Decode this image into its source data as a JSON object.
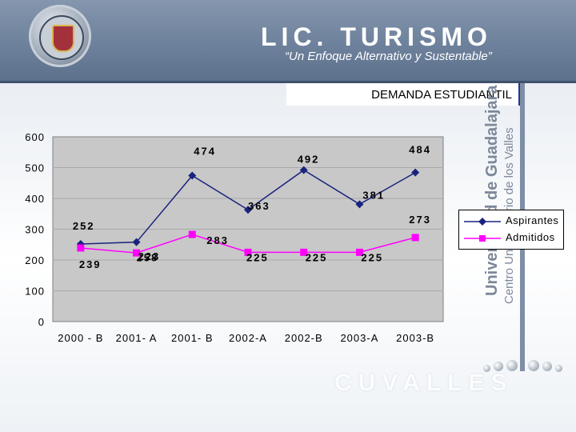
{
  "header": {
    "title": "LIC. TURISMO",
    "subtitle": "“Un Enfoque Alternativo y Sustentable”",
    "section_label": "DEMANDA ESTUDIANTIL"
  },
  "side": {
    "university": "Universidad de Guadalajara",
    "center": "Centro Universitario de los Valles"
  },
  "footer": {
    "brand": "CUVALLES"
  },
  "colors": {
    "aspirantes": "#1a237e",
    "admitidos": "#ff00ff",
    "plot_bg": "#c8c8c8"
  },
  "chart_data": {
    "type": "line",
    "title": "DEMANDA ESTUDIANTIL",
    "categories": [
      "2000 - B",
      "2001- A",
      "2001- B",
      "2002-A",
      "2002-B",
      "2003-A",
      "2003-B"
    ],
    "series": [
      {
        "name": "Aspirantes",
        "values": [
          252,
          258,
          474,
          363,
          492,
          381,
          484
        ]
      },
      {
        "name": "Admitidos",
        "values": [
          239,
          223,
          283,
          225,
          225,
          225,
          273
        ]
      }
    ],
    "ylim": [
      0,
      600
    ],
    "yticks": [
      "0",
      "100",
      "200",
      "300",
      "400",
      "500",
      "600"
    ],
    "grid": true,
    "legend": "right"
  }
}
